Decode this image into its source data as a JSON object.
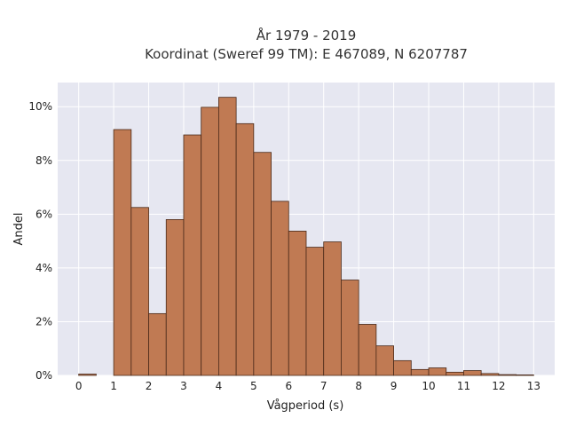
{
  "chart_data": {
    "type": "bar",
    "title": "År 1979 - 2019",
    "subtitle": "Koordinat (Sweref 99 TM): E 467089, N 6207787",
    "xlabel": "Vågperiod (s)",
    "ylabel": "Andel",
    "bin_width": 0.5,
    "bin_starts": [
      0,
      0.5,
      1,
      1.5,
      2,
      2.5,
      3,
      3.5,
      4,
      4.5,
      5,
      5.5,
      6,
      6.5,
      7,
      7.5,
      8,
      8.5,
      9,
      9.5,
      10,
      10.5,
      11,
      11.5,
      12,
      12.5
    ],
    "values": [
      0.0005,
      0,
      0.0915,
      0.0625,
      0.023,
      0.058,
      0.0895,
      0.0998,
      0.1035,
      0.0937,
      0.083,
      0.0648,
      0.0537,
      0.0477,
      0.0497,
      0.0355,
      0.019,
      0.011,
      0.0055,
      0.0022,
      0.0028,
      0.0012,
      0.0018,
      0.0007,
      0.0003,
      0.0002
    ],
    "xlim": [
      -0.6,
      13.6
    ],
    "ylim": [
      0,
      0.109
    ],
    "xticks": [
      0,
      1,
      2,
      3,
      4,
      5,
      6,
      7,
      8,
      9,
      10,
      11,
      12,
      13
    ],
    "yticks": [
      0,
      0.02,
      0.04,
      0.06,
      0.08,
      0.1
    ],
    "ytick_labels": [
      "0%",
      "2%",
      "4%",
      "6%",
      "8%",
      "10%"
    ],
    "grid": true,
    "legend": "none",
    "colors": {
      "bar_fill": "#c07a53",
      "bar_edge": "#4a2a1a",
      "plot_background": "#e6e7f1",
      "grid": "#ffffff"
    }
  }
}
